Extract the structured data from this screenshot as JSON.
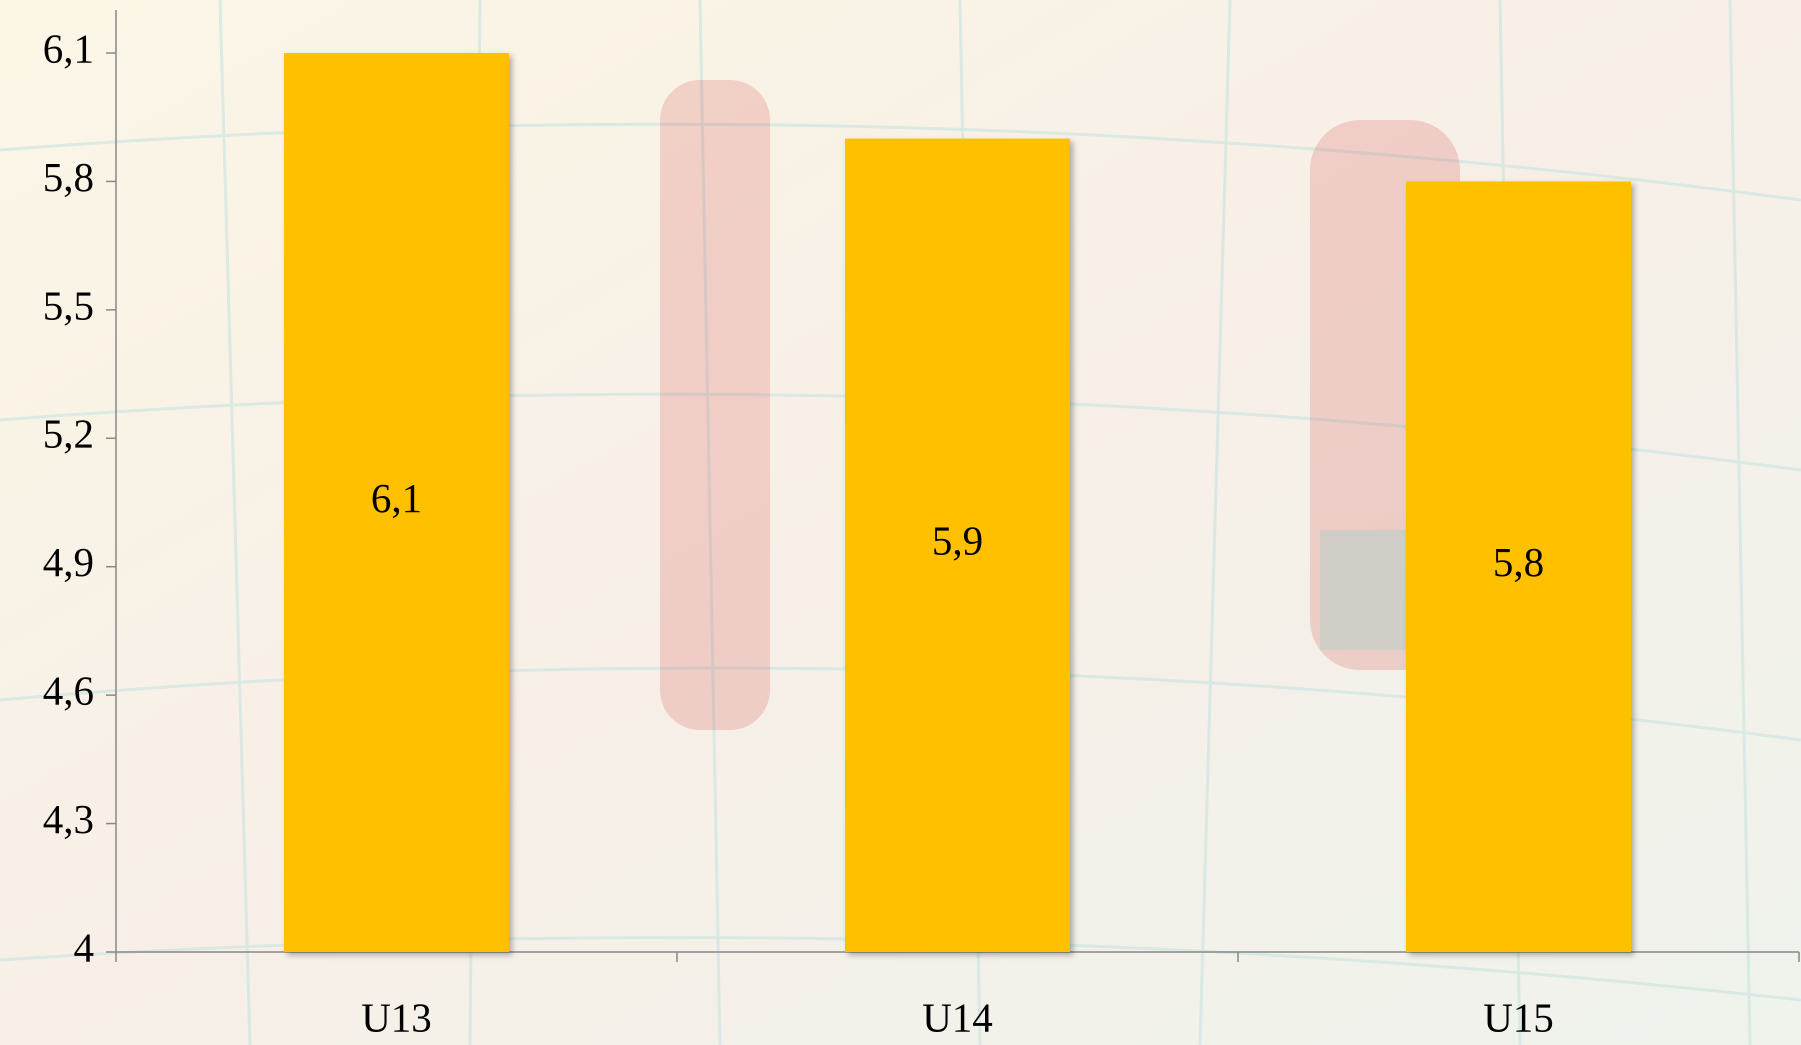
{
  "chart_data": {
    "type": "bar",
    "categories": [
      "U13",
      "U14",
      "U15"
    ],
    "values": [
      6.1,
      5.9,
      5.8
    ],
    "value_labels": [
      "6,1",
      "5,9",
      "5,8"
    ],
    "color": "#ffc000",
    "ylim": [
      4,
      6.1
    ],
    "yticks": [
      {
        "value": 4,
        "label": "4"
      },
      {
        "value": 4.3,
        "label": "4,3"
      },
      {
        "value": 4.6,
        "label": "4,6"
      },
      {
        "value": 4.9,
        "label": "4,9"
      },
      {
        "value": 5.2,
        "label": "5,2"
      },
      {
        "value": 5.5,
        "label": "5,5"
      },
      {
        "value": 5.8,
        "label": "5,8"
      },
      {
        "value": 6.1,
        "label": "6,1"
      }
    ],
    "grid": false
  }
}
